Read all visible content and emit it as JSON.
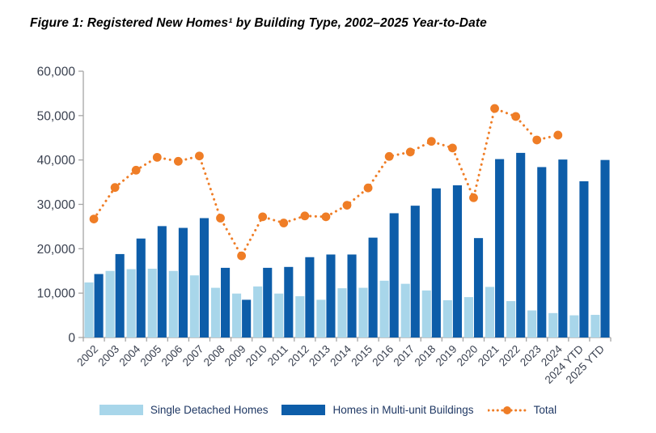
{
  "figure": {
    "title": "Figure 1: Registered New Homes¹ by Building Type, 2002–2025 Year-to-Date"
  },
  "colors": {
    "single_detached": "#a8d6ea",
    "multi_unit": "#0d5da9",
    "total_line": "#ef7d26",
    "axis": "#a6a6a6",
    "tick_label": "#3a4150",
    "legend_text": "#1f3864",
    "title_text": "#000000"
  },
  "chart_data": {
    "type": "bar",
    "title": "Figure 1: Registered New Homes by Building Type, 2002–2025 Year-to-Date",
    "xlabel": "",
    "ylabel": "",
    "ylim": [
      0,
      60000
    ],
    "ytick_step": 10000,
    "ytick_labels": [
      "0",
      "10,000",
      "20,000",
      "30,000",
      "40,000",
      "50,000",
      "60,000"
    ],
    "grid": false,
    "legend_position": "bottom",
    "categories": [
      "2002",
      "2003",
      "2004",
      "2005",
      "2006",
      "2007",
      "2008",
      "2009",
      "2010",
      "2011",
      "2012",
      "2013",
      "2014",
      "2015",
      "2016",
      "2017",
      "2018",
      "2019",
      "2020",
      "2021",
      "2022",
      "2023",
      "2024",
      "2024 YTD",
      "2025 YTD"
    ],
    "series": [
      {
        "name": "Single Detached Homes",
        "type": "bar",
        "color_key": "single_detached",
        "values": [
          12400,
          15000,
          15400,
          15500,
          15000,
          14000,
          11200,
          9900,
          11500,
          9900,
          9300,
          8500,
          11100,
          11200,
          12800,
          12100,
          10600,
          8400,
          9100,
          11400,
          8200,
          6100,
          5500,
          5000,
          5100
        ]
      },
      {
        "name": "Homes in Multi-unit Buildings",
        "type": "bar",
        "color_key": "multi_unit",
        "values": [
          14300,
          18800,
          22300,
          25100,
          24700,
          26900,
          15700,
          8500,
          15700,
          15900,
          18100,
          18700,
          18700,
          22500,
          28000,
          29700,
          33600,
          34300,
          22400,
          40200,
          41600,
          38400,
          40100,
          35200,
          40000
        ]
      },
      {
        "name": "Total",
        "type": "line",
        "style": "dotted",
        "color_key": "total_line",
        "values": [
          26700,
          33800,
          37700,
          40600,
          39700,
          40900,
          26900,
          18400,
          27200,
          25800,
          27400,
          27200,
          29800,
          33700,
          40800,
          41800,
          44200,
          42700,
          31500,
          51600,
          49800,
          44500,
          45600,
          null,
          null
        ]
      }
    ]
  }
}
